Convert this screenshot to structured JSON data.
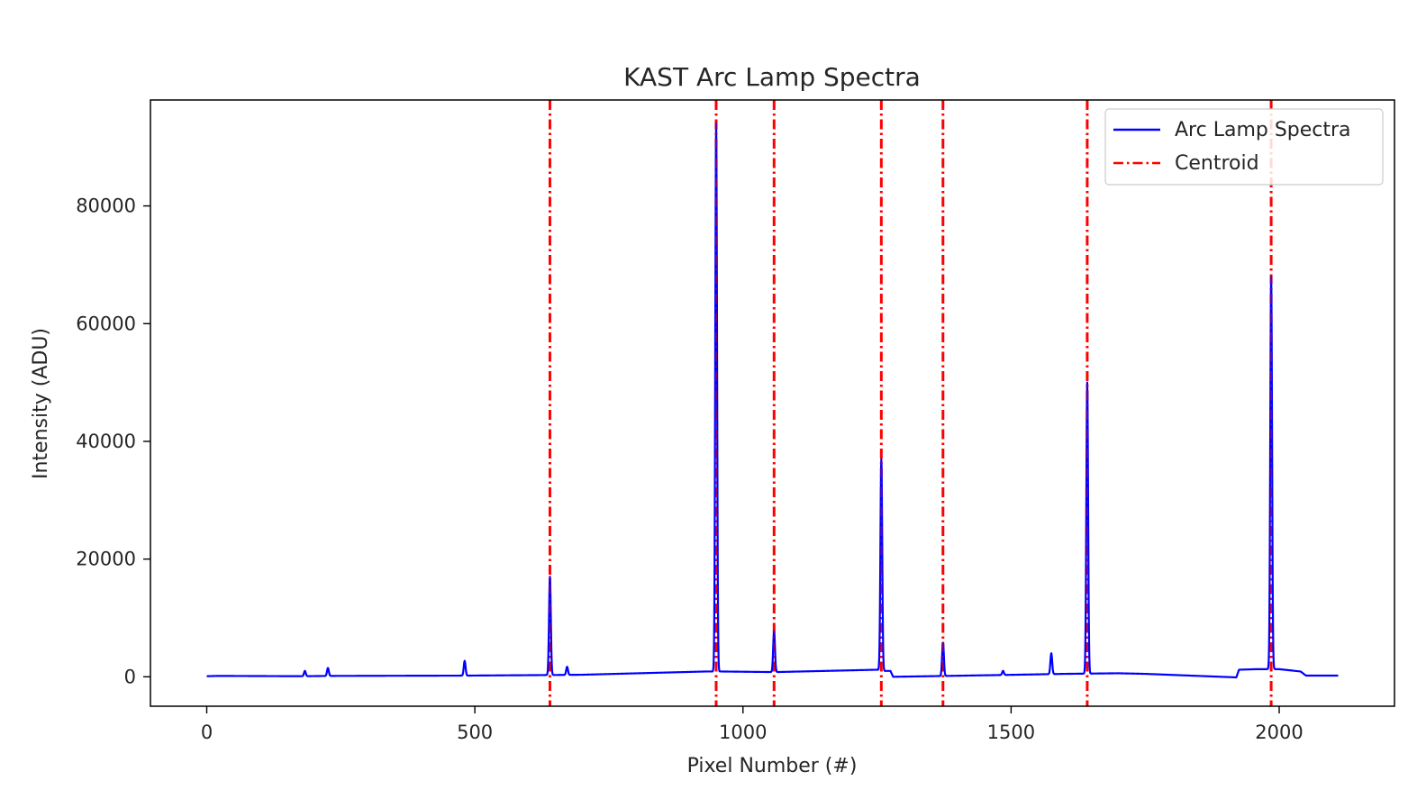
{
  "chart_data": {
    "type": "line",
    "title": "KAST Arc Lamp Spectra",
    "xlabel": "Pixel Number (#)",
    "ylabel": "Intensity (ADU)",
    "xlim": [
      -105,
      2215
    ],
    "ylim": [
      -5000,
      98000
    ],
    "xticks": [
      0,
      500,
      1000,
      1500,
      2000
    ],
    "yticks": [
      0,
      20000,
      40000,
      60000,
      80000
    ],
    "grid": false,
    "legend_position": "top-right",
    "series": [
      {
        "name": "Arc Lamp Spectra",
        "color": "#0000ff",
        "baseline": [
          [
            0,
            100
          ],
          [
            20,
            150
          ],
          [
            180,
            100
          ],
          [
            230,
            150
          ],
          [
            480,
            200
          ],
          [
            640,
            300
          ],
          [
            700,
            350
          ],
          [
            930,
            900
          ],
          [
            960,
            900
          ],
          [
            1060,
            800
          ],
          [
            1250,
            1200
          ],
          [
            1262,
            1000
          ],
          [
            1275,
            1000
          ],
          [
            1280,
            0
          ],
          [
            1480,
            300
          ],
          [
            1600,
            500
          ],
          [
            1700,
            600
          ],
          [
            1750,
            500
          ],
          [
            1920,
            -100
          ],
          [
            1925,
            1200
          ],
          [
            1960,
            1300
          ],
          [
            2000,
            1300
          ],
          [
            2040,
            900
          ],
          [
            2050,
            200
          ],
          [
            2110,
            200
          ]
        ],
        "peaks": [
          {
            "x": 183,
            "y": 1000,
            "w": 3
          },
          {
            "x": 226,
            "y": 1500,
            "w": 3
          },
          {
            "x": 481,
            "y": 2700,
            "w": 3
          },
          {
            "x": 640,
            "y": 17000,
            "w": 3
          },
          {
            "x": 672,
            "y": 1700,
            "w": 3
          },
          {
            "x": 950,
            "y": 94000,
            "w": 3
          },
          {
            "x": 1058,
            "y": 7800,
            "w": 3
          },
          {
            "x": 1258,
            "y": 37000,
            "w": 3
          },
          {
            "x": 1373,
            "y": 5800,
            "w": 3
          },
          {
            "x": 1485,
            "y": 1000,
            "w": 3
          },
          {
            "x": 1575,
            "y": 4000,
            "w": 3
          },
          {
            "x": 1642,
            "y": 50000,
            "w": 3
          },
          {
            "x": 1985,
            "y": 68000,
            "w": 3
          }
        ]
      },
      {
        "name": "Centroid",
        "color": "#ff0000",
        "style": "dash-dot",
        "x": [
          640,
          950,
          1058,
          1258,
          1373,
          1642,
          1985
        ]
      }
    ]
  }
}
